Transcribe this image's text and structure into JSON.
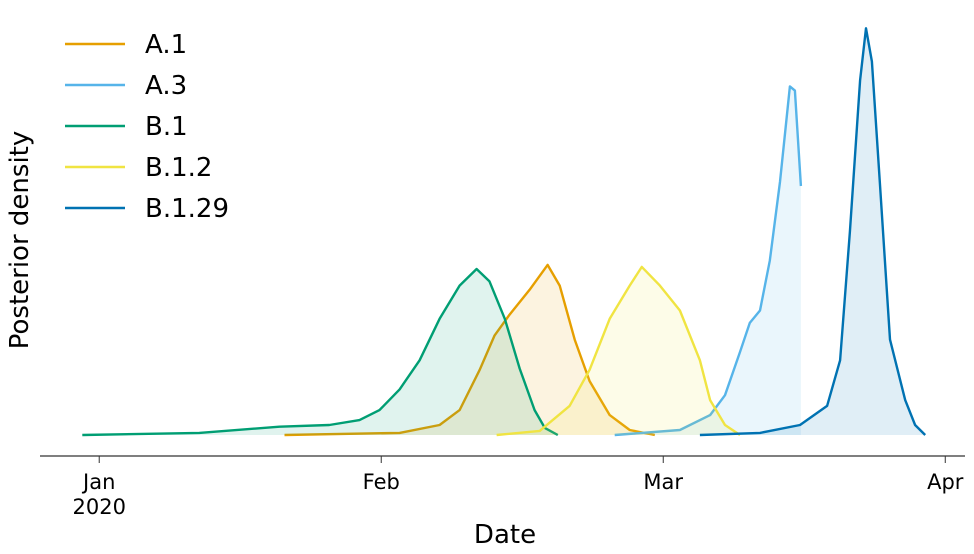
{
  "chart_data": {
    "type": "density",
    "x_label": "Date",
    "y_label": "Posterior density",
    "xlim": [
      -0.21,
      3.07
    ],
    "ylim": [
      0,
      1
    ],
    "xticks": [
      {
        "value": 0,
        "label": "Jan\n2020"
      },
      {
        "value": 1,
        "label": "Feb"
      },
      {
        "value": 2,
        "label": "Mar"
      },
      {
        "value": 3,
        "label": "Apr"
      }
    ],
    "legend": "upper left",
    "series": [
      {
        "name": "A.1",
        "color": "#e69f00",
        "x": [
          0.657,
          1.065,
          1.207,
          1.278,
          1.349,
          1.402,
          1.455,
          1.526,
          1.59,
          1.633,
          1.686,
          1.739,
          1.81,
          1.881,
          1.97
        ],
        "values": [
          0,
          0.005,
          0.024,
          0.06,
          0.157,
          0.24,
          0.29,
          0.35,
          0.41,
          0.36,
          0.23,
          0.13,
          0.048,
          0.012,
          0
        ]
      },
      {
        "name": "A.3",
        "color": "#56b4e9",
        "x": [
          1.828,
          2.059,
          2.166,
          2.219,
          2.272,
          2.307,
          2.343,
          2.378,
          2.414,
          2.449,
          2.467,
          2.488
        ],
        "values": [
          0,
          0.012,
          0.048,
          0.096,
          0.2,
          0.27,
          0.3,
          0.42,
          0.61,
          0.84,
          0.83,
          0.6
        ]
      },
      {
        "name": "B.1",
        "color": "#009e73",
        "x": [
          -0.06,
          0.355,
          0.639,
          0.816,
          0.923,
          0.994,
          1.065,
          1.136,
          1.207,
          1.278,
          1.338,
          1.384,
          1.438,
          1.491,
          1.544,
          1.58,
          1.626
        ],
        "values": [
          0,
          0.005,
          0.02,
          0.024,
          0.036,
          0.06,
          0.11,
          0.18,
          0.28,
          0.36,
          0.4,
          0.37,
          0.28,
          0.16,
          0.06,
          0.017,
          0
        ]
      },
      {
        "name": "B.1.2",
        "color": "#f0e442",
        "x": [
          1.409,
          1.562,
          1.668,
          1.739,
          1.81,
          1.881,
          1.924,
          1.988,
          2.059,
          2.13,
          2.166,
          2.219,
          2.272
        ],
        "values": [
          0,
          0.01,
          0.07,
          0.157,
          0.28,
          0.36,
          0.405,
          0.36,
          0.3,
          0.18,
          0.084,
          0.024,
          0
        ]
      },
      {
        "name": "B.1.29",
        "color": "#0072b2",
        "x": [
          2.13,
          2.343,
          2.485,
          2.581,
          2.627,
          2.662,
          2.698,
          2.719,
          2.74,
          2.768,
          2.804,
          2.858,
          2.893,
          2.929
        ],
        "values": [
          0,
          0.005,
          0.024,
          0.07,
          0.18,
          0.49,
          0.855,
          0.98,
          0.9,
          0.61,
          0.23,
          0.084,
          0.024,
          0
        ]
      }
    ]
  }
}
